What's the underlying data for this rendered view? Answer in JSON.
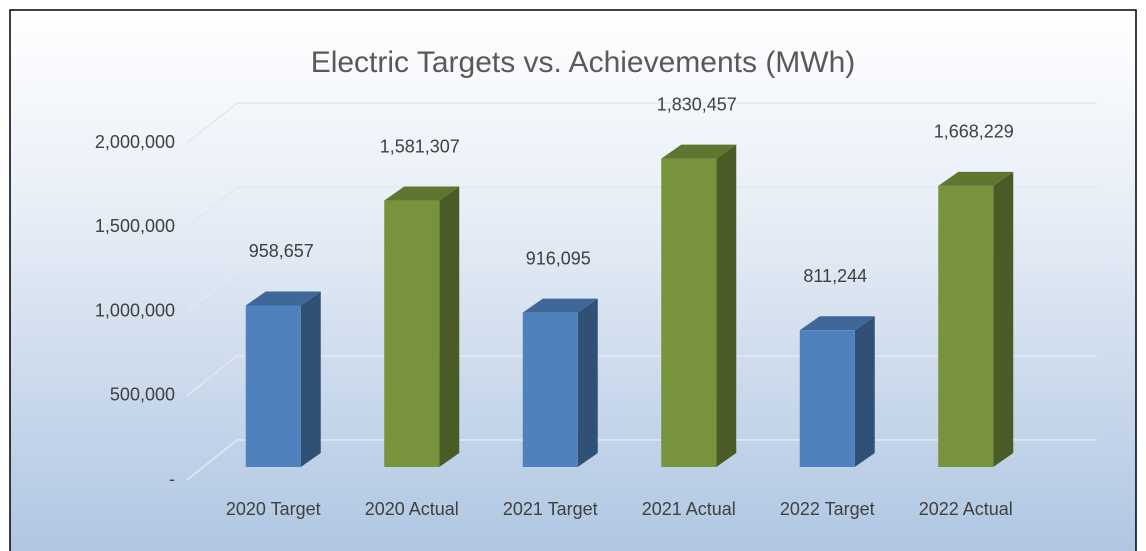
{
  "chart_data": {
    "type": "bar3d",
    "title": "Electric Targets vs. Achievements (MWh)",
    "categories": [
      "2020 Target",
      "2020 Actual",
      "2021 Target",
      "2021 Actual",
      "2022 Target",
      "2022 Actual"
    ],
    "values": [
      958657,
      1581307,
      916095,
      1830457,
      811244,
      1668229
    ],
    "value_labels": [
      "958,657",
      "1,581,307",
      "916,095",
      "1,830,457",
      "811,244",
      "1,668,229"
    ],
    "colors": [
      "#4f81bd",
      "#77933c",
      "#4f81bd",
      "#77933c",
      "#4f81bd",
      "#77933c"
    ],
    "ylim": [
      0,
      2000000
    ],
    "yticks": [
      {
        "value": 0,
        "label": "-"
      },
      {
        "value": 500000,
        "label": "500,000"
      },
      {
        "value": 1000000,
        "label": "1,000,000"
      },
      {
        "value": 1500000,
        "label": "1,500,000"
      },
      {
        "value": 2000000,
        "label": "2,000,000"
      }
    ],
    "grid": true
  }
}
